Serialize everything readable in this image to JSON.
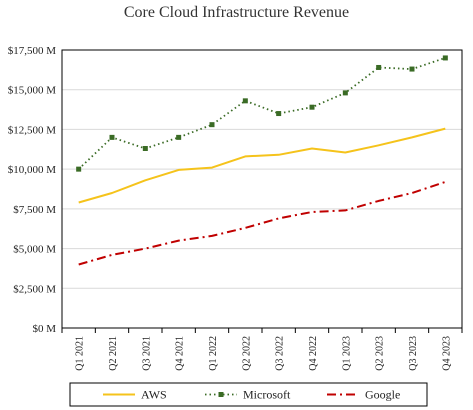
{
  "chart_data": {
    "type": "line",
    "title": "Core Cloud Infrastructure Revenue",
    "categories": [
      "Q1 2021",
      "Q2 2021",
      "Q3 2021",
      "Q4 2021",
      "Q1 2022",
      "Q2 2022",
      "Q3 2022",
      "Q4 2022",
      "Q1 2023",
      "Q2 2023",
      "Q3 2023",
      "Q4 2023"
    ],
    "ylim": [
      0,
      17500
    ],
    "yticks": [
      0,
      2500,
      5000,
      7500,
      10000,
      12500,
      15000,
      17500
    ],
    "ytick_labels": [
      "$0 M",
      "$2,500 M",
      "$5,000 M",
      "$7,500 M",
      "$10,000 M",
      "$12,500 M",
      "$15,000 M",
      "$17,500 M"
    ],
    "grid": "horizontal",
    "legend_position": "bottom",
    "series": [
      {
        "name": "AWS",
        "color": "#F5C31B",
        "style": "solid",
        "values": [
          7900,
          8500,
          9300,
          9950,
          10100,
          10800,
          10900,
          11300,
          11050,
          11500,
          12000,
          12550
        ]
      },
      {
        "name": "Microsoft",
        "color": "#3A6B25",
        "style": "dotted-marker",
        "values": [
          10000,
          12000,
          11300,
          12000,
          12800,
          14300,
          13500,
          13900,
          14800,
          16400,
          16300,
          17000
        ]
      },
      {
        "name": "Google",
        "color": "#C00000",
        "style": "dash-dot",
        "values": [
          4000,
          4600,
          5000,
          5500,
          5800,
          6300,
          6900,
          7300,
          7400,
          8000,
          8500,
          9200
        ]
      }
    ]
  }
}
